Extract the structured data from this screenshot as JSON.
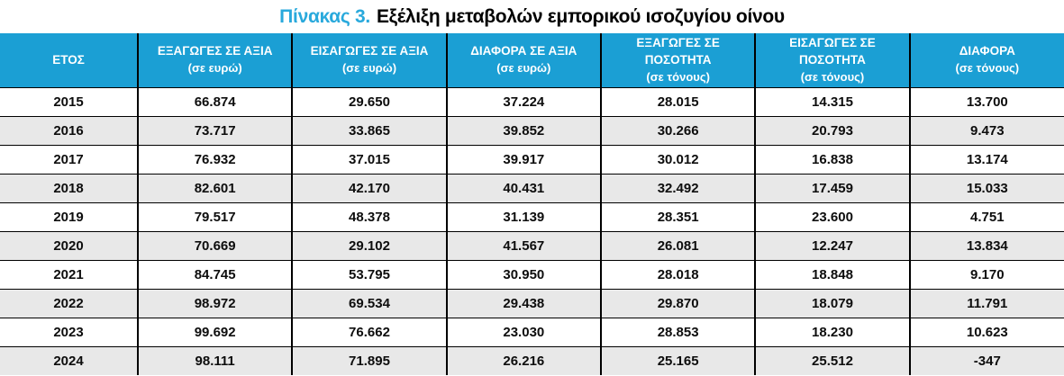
{
  "title": {
    "prefix": "Πίνακας 3.",
    "text": "Εξέλιξη μεταβολών εμπορικού ισοζυγίου οίνου"
  },
  "colors": {
    "header_bg": "#1B9FD4",
    "title_accent": "#29A9DC",
    "row_alt_bg": "#E8E8E8",
    "border": "#000000",
    "header_text": "#FFFFFF"
  },
  "table": {
    "columns": [
      {
        "label": "ΕΤΟΣ",
        "sub": ""
      },
      {
        "label": "ΕΞΑΓΩΓΕΣ ΣΕ ΑΞΙΑ",
        "sub": "(σε ευρώ)"
      },
      {
        "label": "ΕΙΣΑΓΩΓΕΣ ΣΕ ΑΞΙΑ",
        "sub": "(σε ευρώ)"
      },
      {
        "label": "ΔΙΑΦΟΡΑ ΣΕ ΑΞΙΑ",
        "sub": "(σε ευρώ)"
      },
      {
        "label": "ΕΞΑΓΩΓΕΣ ΣΕ ΠΟΣΟΤΗΤΑ",
        "sub": "(σε τόνους)"
      },
      {
        "label": "ΕΙΣΑΓΩΓΕΣ ΣΕ ΠΟΣΟΤΗΤΑ",
        "sub": "(σε τόνους)"
      },
      {
        "label": "ΔΙΑΦΟΡΑ",
        "sub": "(σε τόνους)"
      }
    ],
    "rows": [
      [
        "2015",
        "66.874",
        "29.650",
        "37.224",
        "28.015",
        "14.315",
        "13.700"
      ],
      [
        "2016",
        "73.717",
        "33.865",
        "39.852",
        "30.266",
        "20.793",
        "9.473"
      ],
      [
        "2017",
        "76.932",
        "37.015",
        "39.917",
        "30.012",
        "16.838",
        "13.174"
      ],
      [
        "2018",
        "82.601",
        "42.170",
        "40.431",
        "32.492",
        "17.459",
        "15.033"
      ],
      [
        "2019",
        "79.517",
        "48.378",
        "31.139",
        "28.351",
        "23.600",
        "4.751"
      ],
      [
        "2020",
        "70.669",
        "29.102",
        "41.567",
        "26.081",
        "12.247",
        "13.834"
      ],
      [
        "2021",
        "84.745",
        "53.795",
        "30.950",
        "28.018",
        "18.848",
        "9.170"
      ],
      [
        "2022",
        "98.972",
        "69.534",
        "29.438",
        "29.870",
        "18.079",
        "11.791"
      ],
      [
        "2023",
        "99.692",
        "76.662",
        "23.030",
        "28.853",
        "18.230",
        "10.623"
      ],
      [
        "2024",
        "98.111",
        "71.895",
        "26.216",
        "25.165",
        "25.512",
        "-347"
      ]
    ]
  }
}
